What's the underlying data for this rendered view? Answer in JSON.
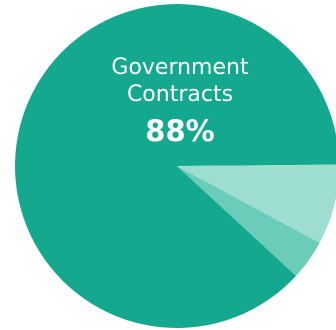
{
  "chart_data": {
    "type": "pie",
    "title": "",
    "slices": [
      {
        "label": "Government\nContracts",
        "value": 88,
        "display": "88%",
        "color": "#14A98E"
      },
      {
        "label": "",
        "value": 4,
        "display": "",
        "color": "#6CCCBA"
      },
      {
        "label": "",
        "value": 8,
        "display": "",
        "color": "#9EDDD1"
      }
    ],
    "legend": "none",
    "start_direction": "right"
  }
}
